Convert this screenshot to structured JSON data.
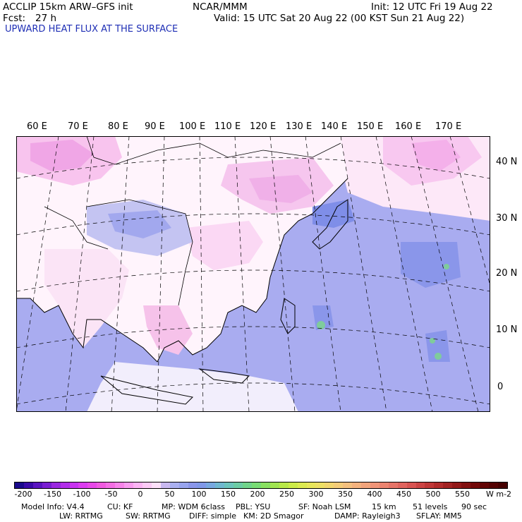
{
  "header": {
    "model_line": "ACCLIP 15km ARW–GFS init",
    "org": "NCAR/MMM",
    "init": "Init: 12 UTC Fri 19 Aug 22",
    "fcst_label": "Fcst:",
    "fcst_value": "27 h",
    "valid": "Valid: 15 UTC Sat 20 Aug 22 (00 KST Sun 21 Aug 22)"
  },
  "field_title": "UPWARD HEAT FLUX AT THE SURFACE",
  "longitude_labels": [
    "60 E",
    "70 E",
    "80 E",
    "90 E",
    "100 E",
    "110 E",
    "120 E",
    "130 E",
    "140 E",
    "150 E",
    "160 E",
    "170 E"
  ],
  "latitude_labels": [
    "40 N",
    "30 N",
    "20 N",
    "10 N",
    "0"
  ],
  "colorbar": {
    "ticks": [
      "-200",
      "-150",
      "-100",
      "-50",
      "0",
      "50",
      "100",
      "150",
      "200",
      "250",
      "300",
      "350",
      "400",
      "450",
      "500",
      "550"
    ],
    "units": "W m-2",
    "colors": [
      "#1a0a8c",
      "#3a0aa8",
      "#5a14c0",
      "#7a1ed2",
      "#9a28e0",
      "#b22eea",
      "#c832f0",
      "#dc3cf0",
      "#e848e8",
      "#f05ae0",
      "#f46ee4",
      "#f884ea",
      "#fa9cf0",
      "#fcb4f4",
      "#fccaf6",
      "#fde0fa",
      "#c9b8f0",
      "#aab0f0",
      "#98a4ee",
      "#8a96ea",
      "#8098e8",
      "#78a8e0",
      "#70b8d0",
      "#6cc4bc",
      "#6ccca4",
      "#70d48a",
      "#78dc74",
      "#88e060",
      "#a0e450",
      "#b8e848",
      "#cceb48",
      "#dcea50",
      "#e8e65a",
      "#eee064",
      "#f2d66e",
      "#f4cc78",
      "#f4c07e",
      "#f4b27e",
      "#f2a47c",
      "#f09478",
      "#ec8470",
      "#e67468",
      "#e0645e",
      "#d85452",
      "#cc4444",
      "#c03838",
      "#b22c2c",
      "#a22222",
      "#921818",
      "#821010",
      "#720808",
      "#620404",
      "#540202",
      "#460000"
    ]
  },
  "footer": {
    "line1": [
      "Model Info: V4.4",
      "CU: KF",
      "MP: WDM 6class",
      "PBL: YSU",
      "SF: Noah LSM",
      "15 km",
      "51 levels",
      "90 sec"
    ],
    "line2": [
      "LW: RRTMG",
      "SW: RRTMG",
      "DIFF: simple",
      "KM: 2D Smagor",
      "DAMP: Rayleigh3",
      "SFLAY: MM5"
    ]
  }
}
